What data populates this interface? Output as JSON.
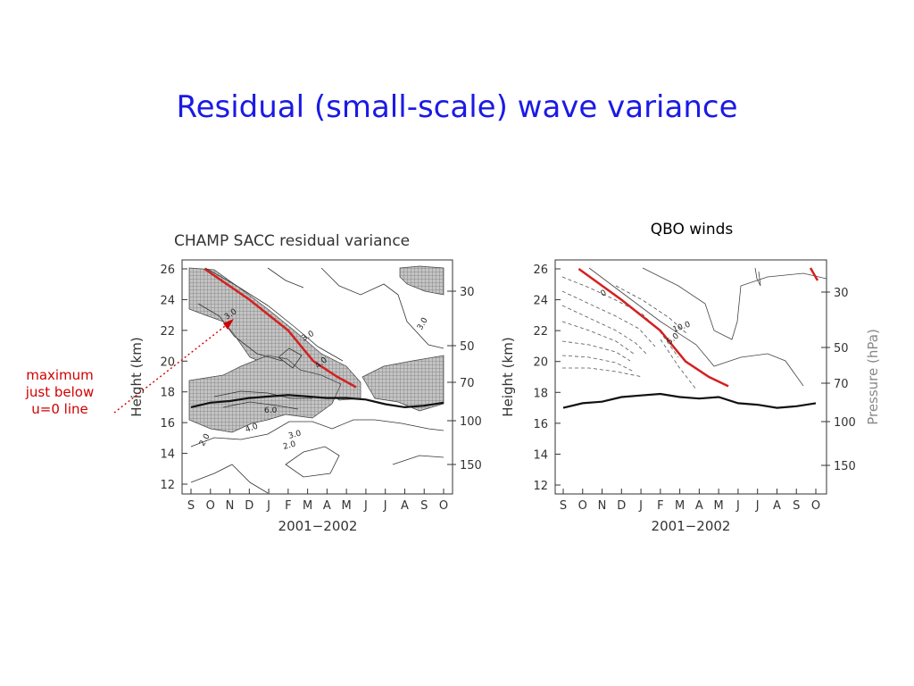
{
  "slide": {
    "title": "Residual (small-scale) wave variance",
    "qbo_label": "QBO winds",
    "annotation": [
      "maximum",
      "just below",
      "u=0 line"
    ]
  },
  "colors": {
    "title": "#1a1ae6",
    "annotation": "#d00000",
    "zero_wind_line": "#d42020",
    "tropopause_line": "#111111",
    "shading": "#9a9a9a"
  },
  "chart_data": [
    {
      "type": "contour",
      "title": "CHAMP SACC residual variance",
      "xlabel": "2001−2002",
      "ylabel": "Height (km)",
      "x_ticks": [
        "S",
        "O",
        "N",
        "D",
        "J",
        "F",
        "M",
        "A",
        "M",
        "J",
        "J",
        "A",
        "S",
        "O"
      ],
      "y_ticks": [
        12,
        14,
        16,
        18,
        20,
        22,
        24,
        26
      ],
      "ylim": [
        12,
        26.5
      ],
      "right_ticks": [
        30,
        50,
        70,
        100,
        150
      ],
      "contour_labels": [
        "3.0",
        "3.0",
        "3.0",
        "4.0",
        "4.0",
        "2.0",
        "3.0",
        "2.0",
        "6.0"
      ],
      "zero_wind_line": [
        [
          0.7,
          26
        ],
        [
          3,
          24
        ],
        [
          5,
          22
        ],
        [
          6.3,
          20
        ],
        [
          7.5,
          19
        ],
        [
          8.5,
          18.3
        ]
      ],
      "tropopause_line": [
        [
          0,
          17.0
        ],
        [
          1,
          17.3
        ],
        [
          2,
          17.4
        ],
        [
          3,
          17.6
        ],
        [
          4,
          17.7
        ],
        [
          5,
          17.8
        ],
        [
          6,
          17.7
        ],
        [
          7,
          17.6
        ],
        [
          8,
          17.6
        ],
        [
          9,
          17.5
        ],
        [
          10,
          17.2
        ],
        [
          11,
          17.0
        ],
        [
          12,
          17.1
        ],
        [
          13,
          17.3
        ]
      ]
    },
    {
      "type": "contour",
      "title": "",
      "xlabel": "2001−2002",
      "ylabel": "Height (km)",
      "right_label": "Pressure (hPa)",
      "x_ticks": [
        "S",
        "O",
        "N",
        "D",
        "J",
        "F",
        "M",
        "A",
        "M",
        "J",
        "J",
        "A",
        "S",
        "O"
      ],
      "y_ticks": [
        12,
        14,
        16,
        18,
        20,
        22,
        24,
        26
      ],
      "ylim": [
        12,
        26.5
      ],
      "right_ticks": [
        30,
        50,
        70,
        100,
        150
      ],
      "contour_labels": [
        "0",
        "10.0",
        "5.0"
      ],
      "zero_wind_line": [
        [
          0.8,
          26
        ],
        [
          3,
          24
        ],
        [
          5,
          22
        ],
        [
          6.3,
          20
        ],
        [
          7.5,
          19
        ],
        [
          8.5,
          18.4
        ]
      ],
      "tropopause_line": [
        [
          0,
          17.0
        ],
        [
          1,
          17.3
        ],
        [
          2,
          17.4
        ],
        [
          3,
          17.7
        ],
        [
          4,
          17.8
        ],
        [
          5,
          17.9
        ],
        [
          6,
          17.7
        ],
        [
          7,
          17.6
        ],
        [
          8,
          17.7
        ],
        [
          9,
          17.3
        ],
        [
          10,
          17.2
        ],
        [
          11,
          17.0
        ],
        [
          12,
          17.1
        ],
        [
          13,
          17.3
        ]
      ]
    }
  ]
}
